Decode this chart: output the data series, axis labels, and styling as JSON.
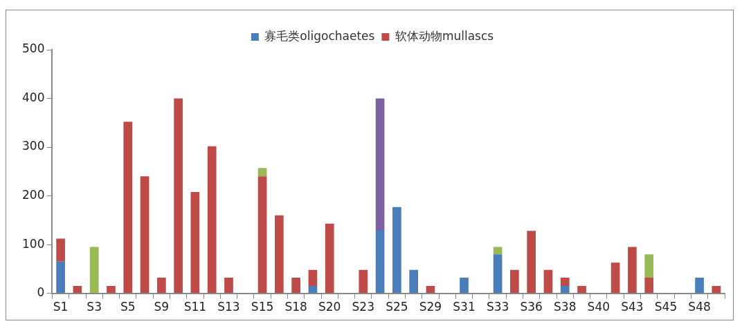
{
  "chart_data": {
    "type": "bar",
    "stacked": true,
    "legend": "top",
    "grid": false,
    "categories": [
      "S1",
      null,
      "S3",
      null,
      "S5",
      null,
      "S9",
      null,
      "S11",
      null,
      "S13",
      null,
      "S15",
      null,
      "S18",
      null,
      "S20",
      null,
      "S23",
      null,
      "S25",
      null,
      "S29",
      null,
      "S31",
      null,
      "S33",
      null,
      "S36",
      null,
      "S38",
      null,
      "S40",
      null,
      "S43",
      null,
      "S45",
      null,
      "S48",
      null
    ],
    "ylim": [
      0,
      500
    ],
    "yticks": [
      0,
      100,
      200,
      300,
      400,
      500
    ],
    "series": [
      {
        "name": "寡毛类oligochaetes",
        "color": "#4a7ebb",
        "values": [
          65,
          null,
          null,
          null,
          null,
          null,
          null,
          null,
          null,
          null,
          null,
          null,
          null,
          null,
          null,
          15,
          null,
          null,
          null,
          130,
          177,
          48,
          null,
          null,
          32,
          null,
          80,
          null,
          null,
          null,
          15,
          null,
          null,
          null,
          null,
          null,
          null,
          null,
          32,
          null
        ]
      },
      {
        "name": "软体动物mullascs",
        "color": "#be4b48",
        "values": [
          47,
          15,
          null,
          15,
          352,
          240,
          32,
          400,
          208,
          302,
          32,
          null,
          240,
          160,
          32,
          33,
          143,
          null,
          48,
          null,
          null,
          null,
          15,
          null,
          null,
          null,
          null,
          48,
          128,
          48,
          17,
          15,
          null,
          63,
          95,
          32,
          null,
          null,
          null,
          15
        ]
      },
      {
        "color": "#98b954",
        "values": [
          null,
          null,
          95,
          null,
          null,
          null,
          null,
          null,
          null,
          null,
          null,
          null,
          17,
          null,
          null,
          null,
          null,
          null,
          null,
          null,
          null,
          null,
          null,
          null,
          null,
          null,
          15,
          null,
          null,
          null,
          null,
          null,
          null,
          null,
          null,
          48,
          null,
          null,
          null,
          null
        ]
      },
      {
        "color": "#7d60a0",
        "values": [
          null,
          null,
          null,
          null,
          null,
          null,
          null,
          null,
          null,
          null,
          null,
          null,
          null,
          null,
          null,
          null,
          null,
          null,
          null,
          270,
          null,
          null,
          null,
          null,
          null,
          null,
          null,
          null,
          null,
          null,
          null,
          null,
          null,
          null,
          null,
          null,
          null,
          null,
          null,
          null
        ]
      }
    ]
  }
}
